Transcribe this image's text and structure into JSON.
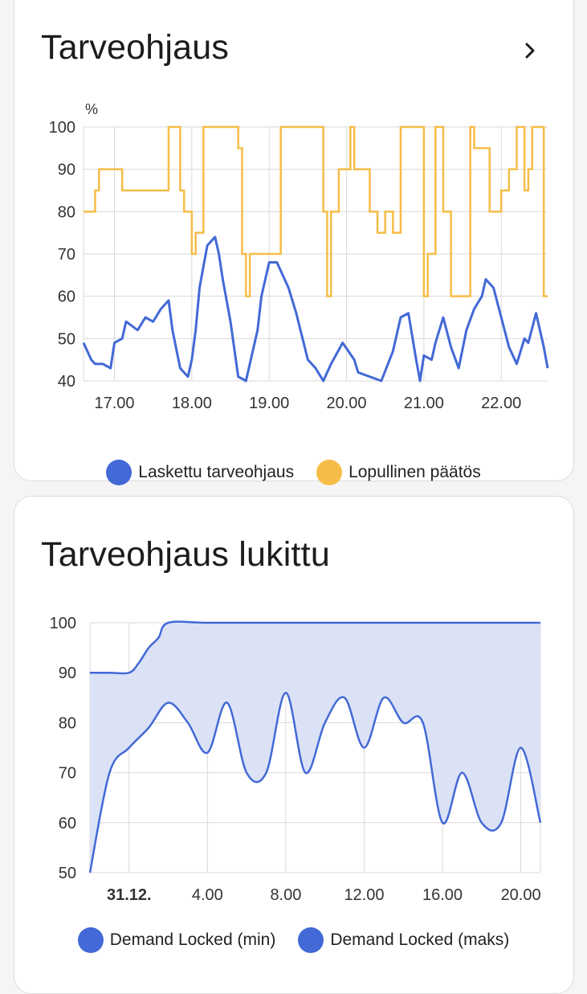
{
  "card1": {
    "title": "Tarveohjaus",
    "unit": "%",
    "chevron_icon": "chevron-right-icon"
  },
  "card2": {
    "title": "Tarveohjaus lukittu"
  },
  "colors": {
    "blue": "#4369d6",
    "yellow": "#f5bd47",
    "fill_blue": "#dbe2f6",
    "grid": "#d9d9d9"
  },
  "chart_data": [
    {
      "type": "line",
      "title": "Tarveohjaus",
      "ylabel": "%",
      "ylim": [
        40,
        100
      ],
      "yticks": [
        40,
        50,
        60,
        70,
        80,
        90,
        100
      ],
      "xlim": [
        16.6,
        22.6
      ],
      "xticks": [
        17,
        18,
        19,
        20,
        21,
        22
      ],
      "xtick_labels": [
        "17.00",
        "18.00",
        "19.00",
        "20.00",
        "21.00",
        "22.00"
      ],
      "legend_position": "bottom",
      "series": [
        {
          "name": "Laskettu tarveohjaus",
          "color": "#4369d6",
          "x": [
            16.6,
            16.7,
            16.75,
            16.85,
            16.95,
            17.0,
            17.1,
            17.15,
            17.3,
            17.4,
            17.5,
            17.6,
            17.7,
            17.75,
            17.85,
            17.9,
            17.95,
            18.0,
            18.05,
            18.1,
            18.2,
            18.3,
            18.35,
            18.4,
            18.5,
            18.6,
            18.7,
            18.75,
            18.85,
            18.9,
            19.0,
            19.1,
            19.25,
            19.35,
            19.5,
            19.6,
            19.7,
            19.8,
            19.95,
            20.1,
            20.15,
            20.3,
            20.45,
            20.6,
            20.7,
            20.8,
            20.9,
            20.95,
            21.0,
            21.1,
            21.15,
            21.25,
            21.35,
            21.45,
            21.55,
            21.65,
            21.75,
            21.8,
            21.9,
            22.0,
            22.1,
            22.2,
            22.3,
            22.35,
            22.45,
            22.55,
            22.6
          ],
          "y": [
            49,
            45,
            44,
            44,
            43,
            49,
            50,
            54,
            52,
            55,
            54,
            57,
            59,
            52,
            43,
            42,
            41,
            45,
            52,
            62,
            72,
            74,
            70,
            64,
            54,
            41,
            40,
            44,
            52,
            60,
            68,
            68,
            62,
            56,
            45,
            43,
            40,
            44,
            49,
            45,
            42,
            41,
            40,
            47,
            55,
            56,
            45,
            40,
            46,
            45,
            49,
            55,
            48,
            43,
            52,
            57,
            60,
            64,
            62,
            55,
            48,
            44,
            50,
            49,
            56,
            48,
            43
          ]
        },
        {
          "name": "Lopullinen päätös",
          "color": "#f5bd47",
          "x": [
            16.6,
            16.75,
            16.8,
            16.85,
            17.1,
            17.15,
            17.65,
            17.7,
            17.8,
            17.85,
            17.9,
            18.0,
            18.05,
            18.15,
            18.25,
            18.6,
            18.65,
            18.7,
            18.75,
            18.85,
            18.9,
            19.1,
            19.15,
            19.6,
            19.7,
            19.75,
            19.8,
            19.9,
            20.05,
            20.1,
            20.3,
            20.4,
            20.5,
            20.6,
            20.7,
            20.85,
            21.0,
            21.05,
            21.15,
            21.25,
            21.35,
            21.4,
            21.6,
            21.65,
            21.85,
            22.0,
            22.1,
            22.2,
            22.25,
            22.3,
            22.35,
            22.4,
            22.45,
            22.55,
            22.6
          ],
          "y": [
            80,
            85,
            90,
            90,
            85,
            85,
            85,
            100,
            100,
            85,
            80,
            70,
            75,
            100,
            100,
            95,
            70,
            60,
            70,
            70,
            70,
            70,
            100,
            100,
            80,
            60,
            80,
            90,
            100,
            90,
            80,
            75,
            80,
            75,
            100,
            100,
            60,
            70,
            100,
            80,
            60,
            60,
            100,
            95,
            80,
            85,
            90,
            100,
            100,
            85,
            90,
            100,
            100,
            60,
            60
          ]
        }
      ]
    },
    {
      "type": "area",
      "title": "Tarveohjaus lukittu",
      "ylim": [
        50,
        100
      ],
      "yticks": [
        50,
        60,
        70,
        80,
        90,
        100
      ],
      "xlim": [
        -2,
        21
      ],
      "xticks": [
        0,
        4,
        8,
        12,
        16,
        20
      ],
      "xtick_labels": [
        "31.12.",
        "4.00",
        "8.00",
        "12.00",
        "16.00",
        "20.00"
      ],
      "legend_position": "bottom",
      "series": [
        {
          "name": "Demand Locked (min)",
          "color": "#4369d6",
          "x": [
            -2,
            -1,
            0,
            1,
            2,
            3,
            4,
            5,
            6,
            7,
            8,
            9,
            10,
            11,
            12,
            13,
            14,
            15,
            16,
            17,
            18,
            19,
            20,
            21
          ],
          "y": [
            50,
            70,
            75,
            79,
            84,
            80,
            74,
            84,
            70,
            70,
            86,
            70,
            80,
            85,
            75,
            85,
            80,
            80,
            60,
            70,
            60,
            60,
            75,
            60
          ]
        },
        {
          "name": "Demand Locked (maks)",
          "color": "#4369d6",
          "x": [
            -2,
            -1,
            0,
            0.5,
            1,
            1.5,
            2,
            4,
            8,
            12,
            16,
            20,
            21
          ],
          "y": [
            90,
            90,
            90,
            92,
            95,
            97,
            100,
            100,
            100,
            100,
            100,
            100,
            100
          ]
        }
      ]
    }
  ]
}
